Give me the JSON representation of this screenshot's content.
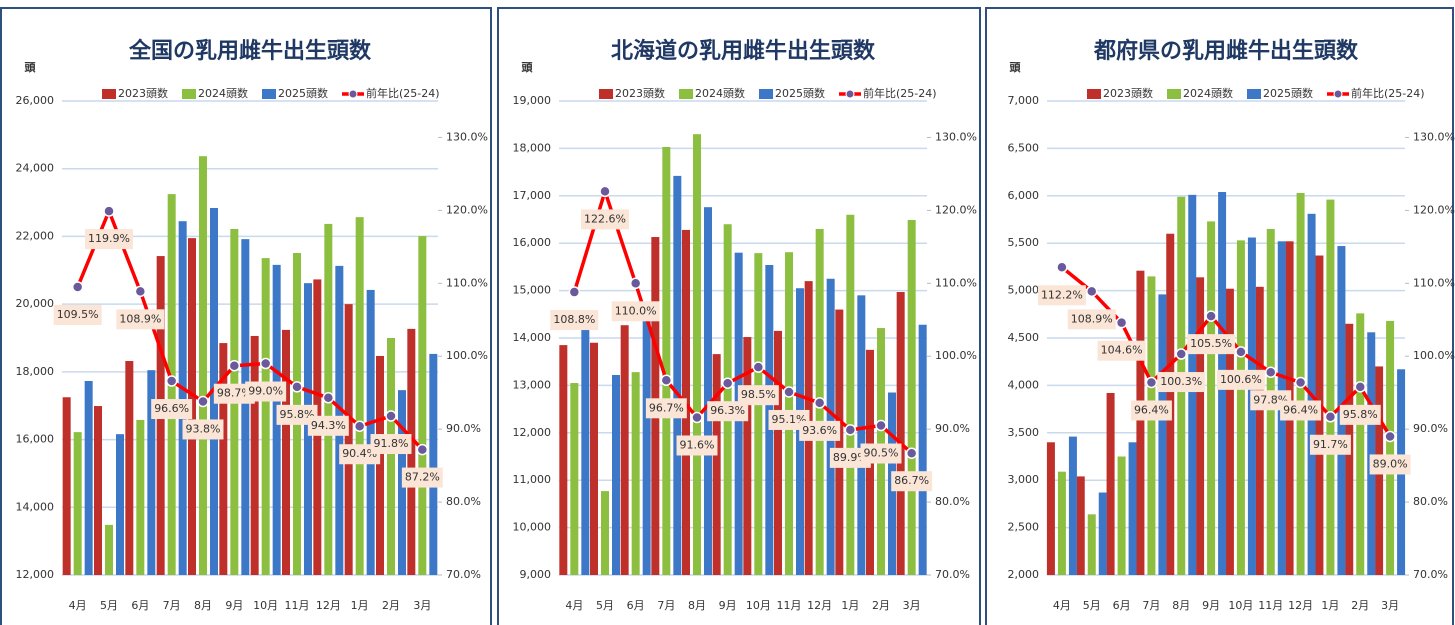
{
  "chart_data": [
    {
      "type": "bar",
      "title": "全国の乳用雌牛出生頭数",
      "y_label": "頭",
      "categories": [
        "4月",
        "5月",
        "6月",
        "7月",
        "8月",
        "9月",
        "10月",
        "11月",
        "12月",
        "1月",
        "2月",
        "3月"
      ],
      "series": [
        {
          "name": "2023頭数",
          "color": "#c0302a",
          "values": [
            17250,
            16990,
            18320,
            21420,
            21950,
            18850,
            19060,
            19240,
            20730,
            20000,
            18470,
            19270
          ]
        },
        {
          "name": "2024頭数",
          "color": "#8cbf3f",
          "values": [
            16220,
            13480,
            16580,
            23250,
            24370,
            22220,
            21360,
            21510,
            22370,
            22570,
            19000,
            22010
          ]
        },
        {
          "name": "2025頭数",
          "color": "#3d78c8",
          "values": [
            17730,
            16160,
            18050,
            22450,
            22840,
            21920,
            21160,
            20620,
            21130,
            20420,
            17460,
            18530
          ]
        },
        {
          "name": "前年比(25-24)",
          "color": "#ff0000",
          "type": "line",
          "axis": "y2",
          "values": [
            109.5,
            119.9,
            108.9,
            96.6,
            93.8,
            98.7,
            99.0,
            95.8,
            94.3,
            90.4,
            91.8,
            87.2
          ],
          "value_labels": [
            "109.5%",
            "119.9%",
            "108.9%",
            "96.6%",
            "93.8%",
            "98.7%",
            "99.0%",
            "95.8%",
            "94.3%",
            "90.4%",
            "91.8%",
            "87.2%"
          ]
        }
      ],
      "ylim": [
        12000,
        26000
      ],
      "yticks": [
        {
          "value": 12000,
          "label": "12,000"
        },
        {
          "value": 14000,
          "label": "14,000"
        },
        {
          "value": 16000,
          "label": "16,000"
        },
        {
          "value": 18000,
          "label": "18,000"
        },
        {
          "value": 20000,
          "label": "20,000"
        },
        {
          "value": 22000,
          "label": "22,000"
        },
        {
          "value": 24000,
          "label": "24,000"
        },
        {
          "value": 26000,
          "label": "26,000"
        }
      ],
      "y2lim": [
        70,
        135
      ],
      "y2ticks": [
        {
          "value": 70,
          "label": "70.0%"
        },
        {
          "value": 80,
          "label": "80.0%"
        },
        {
          "value": 90,
          "label": "90.0%"
        },
        {
          "value": 100,
          "label": "100.0%"
        },
        {
          "value": 110,
          "label": "110.0%"
        },
        {
          "value": 120,
          "label": "120.0%"
        },
        {
          "value": 130,
          "label": "130.0%"
        }
      ],
      "grid": true
    },
    {
      "type": "bar",
      "title": "北海道の乳用雌牛出生頭数",
      "y_label": "頭",
      "categories": [
        "4月",
        "5月",
        "6月",
        "7月",
        "8月",
        "9月",
        "10月",
        "11月",
        "12月",
        "1月",
        "2月",
        "3月"
      ],
      "series": [
        {
          "name": "2023頭数",
          "color": "#c0302a",
          "values": [
            13850,
            13900,
            14270,
            16130,
            16280,
            13660,
            14020,
            14150,
            15200,
            14600,
            13750,
            14970
          ]
        },
        {
          "name": "2024頭数",
          "color": "#8cbf3f",
          "values": [
            13050,
            10770,
            13280,
            18030,
            18300,
            16400,
            15790,
            15810,
            16300,
            16600,
            14210,
            16490
          ]
        },
        {
          "name": "2025頭数",
          "color": "#3d78c8",
          "values": [
            14200,
            13220,
            14600,
            17420,
            16760,
            15800,
            15540,
            15050,
            15250,
            14900,
            12850,
            14280
          ]
        },
        {
          "name": "前年比(25-24)",
          "color": "#ff0000",
          "type": "line",
          "axis": "y2",
          "values": [
            108.8,
            122.6,
            110.0,
            96.7,
            91.6,
            96.3,
            98.5,
            95.1,
            93.6,
            89.9,
            90.5,
            86.7
          ],
          "value_labels": [
            "108.8%",
            "122.6%",
            "110.0%",
            "96.7%",
            "91.6%",
            "96.3%",
            "98.5%",
            "95.1%",
            "93.6%",
            "89.9%",
            "90.5%",
            "86.7%"
          ]
        }
      ],
      "ylim": [
        9000,
        19000
      ],
      "yticks": [
        {
          "value": 9000,
          "label": "9,000"
        },
        {
          "value": 10000,
          "label": "10,000"
        },
        {
          "value": 11000,
          "label": "11,000"
        },
        {
          "value": 12000,
          "label": "12,000"
        },
        {
          "value": 13000,
          "label": "13,000"
        },
        {
          "value": 14000,
          "label": "14,000"
        },
        {
          "value": 15000,
          "label": "15,000"
        },
        {
          "value": 16000,
          "label": "16,000"
        },
        {
          "value": 17000,
          "label": "17,000"
        },
        {
          "value": 18000,
          "label": "18,000"
        },
        {
          "value": 19000,
          "label": "19,000"
        }
      ],
      "y2lim": [
        70,
        135
      ],
      "y2ticks": [
        {
          "value": 70,
          "label": "70.0%"
        },
        {
          "value": 80,
          "label": "80.0%"
        },
        {
          "value": 90,
          "label": "90.0%"
        },
        {
          "value": 100,
          "label": "100.0%"
        },
        {
          "value": 110,
          "label": "110.0%"
        },
        {
          "value": 120,
          "label": "120.0%"
        },
        {
          "value": 130,
          "label": "130.0%"
        }
      ],
      "grid": true
    },
    {
      "type": "bar",
      "title": "都府県の乳用雌牛出生頭数",
      "y_label": "頭",
      "categories": [
        "4月",
        "5月",
        "6月",
        "7月",
        "8月",
        "9月",
        "10月",
        "11月",
        "12月",
        "1月",
        "2月",
        "3月"
      ],
      "series": [
        {
          "name": "2023頭数",
          "color": "#c0302a",
          "values": [
            3400,
            3040,
            3920,
            5210,
            5600,
            5140,
            5020,
            5040,
            5520,
            5370,
            4650,
            4200
          ]
        },
        {
          "name": "2024頭数",
          "color": "#8cbf3f",
          "values": [
            3090,
            2640,
            3250,
            5150,
            5990,
            5730,
            5530,
            5650,
            6030,
            5960,
            4760,
            4680
          ]
        },
        {
          "name": "2025頭数",
          "color": "#3d78c8",
          "values": [
            3460,
            2870,
            3400,
            4960,
            6010,
            6040,
            5560,
            5520,
            5810,
            5470,
            4560,
            4170
          ]
        },
        {
          "name": "前年比(25-24)",
          "color": "#ff0000",
          "type": "line",
          "axis": "y2",
          "values": [
            112.2,
            108.9,
            104.6,
            96.4,
            100.3,
            105.5,
            100.6,
            97.8,
            96.4,
            91.7,
            95.8,
            89.0
          ],
          "value_labels": [
            "112.2%",
            "108.9%",
            "104.6%",
            "96.4%",
            "100.3%",
            "105.5%",
            "100.6%",
            "97.8%",
            "96.4%",
            "91.7%",
            "95.8%",
            "89.0%"
          ]
        }
      ],
      "ylim": [
        2000,
        7000
      ],
      "yticks": [
        {
          "value": 2000,
          "label": "2,000"
        },
        {
          "value": 2500,
          "label": "2,500"
        },
        {
          "value": 3000,
          "label": "3,000"
        },
        {
          "value": 3500,
          "label": "3,500"
        },
        {
          "value": 4000,
          "label": "4,000"
        },
        {
          "value": 4500,
          "label": "4,500"
        },
        {
          "value": 5000,
          "label": "5,000"
        },
        {
          "value": 5500,
          "label": "5,500"
        },
        {
          "value": 6000,
          "label": "6,000"
        },
        {
          "value": 6500,
          "label": "6,500"
        },
        {
          "value": 7000,
          "label": "7,000"
        }
      ],
      "y2lim": [
        70,
        135
      ],
      "y2ticks": [
        {
          "value": 70,
          "label": "70.0%"
        },
        {
          "value": 80,
          "label": "80.0%"
        },
        {
          "value": 90,
          "label": "90.0%"
        },
        {
          "value": 100,
          "label": "100.0%"
        },
        {
          "value": 110,
          "label": "110.0%"
        },
        {
          "value": 120,
          "label": "120.0%"
        },
        {
          "value": 130,
          "label": "130.0%"
        }
      ],
      "grid": true
    }
  ]
}
